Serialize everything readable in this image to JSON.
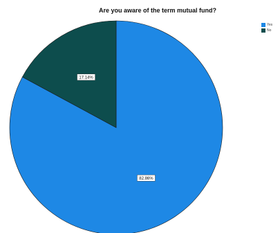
{
  "chart_data": {
    "type": "pie",
    "title": "Are you aware of the term mutual fund?",
    "categories": [
      "Yes",
      "No"
    ],
    "values": [
      82.86,
      17.14
    ],
    "data_labels": [
      "82.86%",
      "17.14%"
    ],
    "colors": [
      "#1e88e5",
      "#0d4d4d"
    ],
    "legend": "top-right"
  }
}
